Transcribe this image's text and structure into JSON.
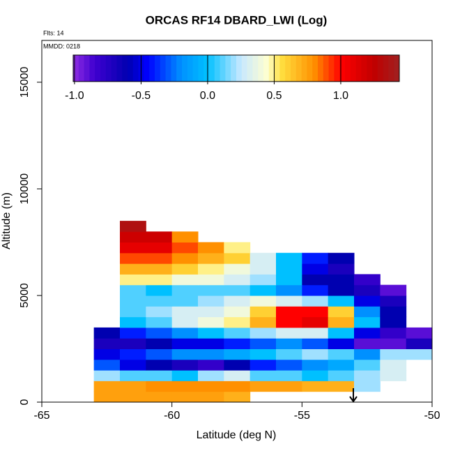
{
  "chart_data": {
    "type": "heatmap",
    "title": "ORCAS RF14 DBARD_LWI (Log)",
    "annotations": [
      "Flts: 14",
      "MMDD: 0218"
    ],
    "x_label": "Latitude (deg N)",
    "y_label": "Altitude (m)",
    "xlim": [
      -65,
      -50
    ],
    "xticks": [
      -65,
      -60,
      -55,
      -50
    ],
    "ylim": [
      0,
      16960
    ],
    "yticks": [
      0,
      5000,
      10000,
      15000
    ],
    "zlim": [
      -1.01,
      1.44
    ],
    "zticks": [
      {
        "value": -1,
        "label": "-1.0"
      },
      {
        "value": -0.5,
        "label": "-0.5"
      },
      {
        "value": 0,
        "label": "0.0"
      },
      {
        "value": 0.5,
        "label": "0.5"
      },
      {
        "value": 1,
        "label": "1.0"
      }
    ],
    "color_stops": [
      [
        -1.0,
        "#8a2be2"
      ],
      [
        -0.85,
        "#4000d0"
      ],
      [
        -0.6,
        "#0000b0"
      ],
      [
        -0.45,
        "#0000ff"
      ],
      [
        -0.2,
        "#0090ff"
      ],
      [
        0,
        "#00c0ff"
      ],
      [
        0.25,
        "#c8e8ff"
      ],
      [
        0.45,
        "#ffffd0"
      ],
      [
        0.55,
        "#ffe040"
      ],
      [
        0.8,
        "#ff9000"
      ],
      [
        1.0,
        "#ff0000"
      ],
      [
        1.25,
        "#c00000"
      ],
      [
        1.44,
        "#a02020"
      ]
    ],
    "x_edges": [
      -63,
      -62,
      -61,
      -60,
      -59,
      -58,
      -57,
      -56,
      -55,
      -54,
      -53,
      -52,
      -51,
      -50
    ],
    "y_edges": [
      0,
      500,
      1000,
      1500,
      2000,
      2500,
      3000,
      3500,
      4000,
      4500,
      5000,
      5500,
      6000,
      6500,
      7000,
      7500,
      8000,
      8500
    ],
    "z": [
      [
        0.75,
        0.75,
        0.75,
        0.75,
        0.75,
        0.7,
        null,
        null,
        null,
        null,
        null,
        null,
        null
      ],
      [
        0.75,
        0.75,
        0.8,
        0.8,
        0.8,
        0.8,
        0.75,
        0.75,
        0.7,
        0.7,
        0.2,
        null,
        null
      ],
      [
        0.2,
        0.1,
        0.1,
        0.0,
        0.2,
        0.3,
        0.1,
        0.1,
        0.0,
        0.1,
        0.2,
        0.3,
        null
      ],
      [
        -0.3,
        -0.5,
        -0.6,
        -0.7,
        -0.8,
        -0.6,
        -0.4,
        -0.3,
        -0.2,
        -0.1,
        0.1,
        0.3,
        null
      ],
      [
        -0.5,
        -0.4,
        -0.3,
        -0.2,
        -0.2,
        -0.1,
        0.0,
        0.1,
        0.2,
        0.1,
        -0.2,
        0.2,
        0.2
      ],
      [
        -0.7,
        -0.7,
        -0.6,
        -0.5,
        -0.5,
        -0.4,
        -0.3,
        -0.2,
        -0.3,
        -0.5,
        -0.9,
        -0.9,
        -0.7
      ],
      [
        -0.6,
        -0.4,
        -0.3,
        -0.2,
        0.0,
        0.1,
        0.2,
        0.3,
        0.3,
        0.0,
        -0.5,
        -0.8,
        -0.9
      ],
      [
        null,
        0.0,
        0.1,
        0.3,
        0.4,
        0.5,
        0.7,
        1.0,
        1.1,
        0.7,
        0.0,
        -0.6,
        null
      ],
      [
        null,
        0.1,
        0.2,
        0.3,
        0.3,
        0.4,
        0.6,
        1.0,
        1.0,
        0.6,
        -0.2,
        -0.6,
        null
      ],
      [
        null,
        0.1,
        0.1,
        0.1,
        0.2,
        0.3,
        0.4,
        0.3,
        0.2,
        0.0,
        -0.5,
        -0.7,
        null
      ],
      [
        null,
        0.1,
        0.0,
        0.1,
        0.1,
        0.1,
        0.0,
        -0.2,
        -0.4,
        -0.6,
        -0.7,
        -0.9,
        null
      ],
      [
        null,
        0.5,
        0.5,
        0.4,
        0.4,
        0.3,
        0.2,
        0.0,
        -0.6,
        -0.6,
        -0.8,
        null,
        null
      ],
      [
        null,
        0.7,
        0.7,
        0.6,
        0.5,
        0.4,
        0.3,
        0.0,
        -0.5,
        -0.7,
        null,
        null,
        null
      ],
      [
        null,
        0.9,
        0.9,
        0.8,
        0.7,
        0.6,
        0.3,
        0.0,
        -0.4,
        -0.6,
        null,
        null,
        null
      ],
      [
        null,
        1.1,
        1.1,
        0.9,
        0.8,
        0.5,
        null,
        null,
        null,
        null,
        null,
        null,
        null
      ],
      [
        null,
        1.2,
        1.2,
        0.8,
        null,
        null,
        null,
        null,
        null,
        null,
        null,
        null,
        null
      ],
      [
        null,
        1.35,
        null,
        null,
        null,
        null,
        null,
        null,
        null,
        null,
        null,
        null,
        null
      ]
    ]
  }
}
